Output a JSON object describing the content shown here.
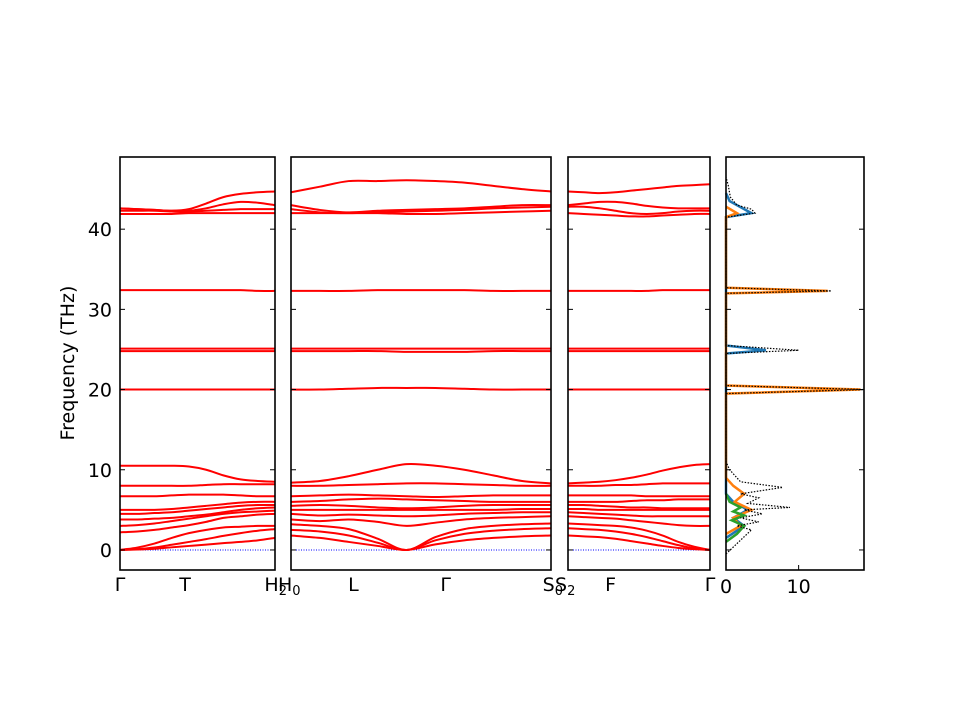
{
  "colors": {
    "band": "#ff0000",
    "zero_line": "#0000ff",
    "dos_total": "#000000",
    "dos_proj": [
      "#1f77b4",
      "#ff7f0e",
      "#2ca02c"
    ]
  },
  "chart_data": [
    {
      "type": "line",
      "panel": "band-segment-1",
      "ylabel": "Frequency (THz)",
      "ylim": [
        -2.5,
        49
      ],
      "yticks": [
        0,
        10,
        20,
        30,
        40
      ],
      "x_labels": [
        "Γ",
        "T",
        "H₂"
      ],
      "x_positions": [
        0,
        0.42,
        1
      ],
      "bands": [
        [
          0,
          0.05,
          0.15,
          0.33,
          0.5,
          0.67,
          0.85,
          1,
          1.2,
          1.5
        ],
        [
          0,
          0.1,
          0.3,
          0.65,
          1,
          1.35,
          1.75,
          2.1,
          2.4,
          2.6
        ],
        [
          0,
          0.3,
          0.8,
          1.5,
          2.1,
          2.5,
          2.8,
          2.9,
          3.0,
          3.0
        ],
        [
          2.2,
          2.3,
          2.5,
          2.8,
          3.1,
          3.5,
          4.0,
          4.2,
          4.4,
          4.5
        ],
        [
          3.0,
          3.1,
          3.3,
          3.6,
          3.9,
          4.2,
          4.5,
          4.7,
          4.8,
          4.9
        ],
        [
          3.8,
          3.8,
          3.9,
          4.0,
          4.2,
          4.4,
          4.7,
          5.0,
          5.2,
          5.3
        ],
        [
          4.5,
          4.5,
          4.6,
          4.7,
          4.9,
          5.1,
          5.3,
          5.5,
          5.6,
          5.6
        ],
        [
          5.0,
          5.0,
          5.0,
          5.1,
          5.3,
          5.5,
          5.7,
          5.9,
          6.0,
          6.0
        ],
        [
          6.7,
          6.7,
          6.7,
          6.8,
          6.9,
          6.9,
          6.9,
          6.8,
          6.7,
          6.7
        ],
        [
          8.0,
          8.0,
          8.0,
          8.0,
          8.0,
          8.1,
          8.2,
          8.2,
          8.2,
          8.2
        ],
        [
          10.5,
          10.5,
          10.5,
          10.5,
          10.4,
          10.0,
          9.3,
          8.8,
          8.6,
          8.5
        ],
        [
          20.0,
          20.0,
          20.0,
          20.0,
          20.0,
          20.0,
          20.0,
          20.0,
          20.0,
          20.0
        ],
        [
          24.8,
          24.8,
          24.8,
          24.8,
          24.8,
          24.8,
          24.8,
          24.8,
          24.8,
          24.8
        ],
        [
          25.1,
          25.1,
          25.1,
          25.1,
          25.1,
          25.1,
          25.1,
          25.1,
          25.1,
          25.1
        ],
        [
          32.4,
          32.4,
          32.4,
          32.4,
          32.4,
          32.4,
          32.4,
          32.4,
          32.3,
          32.3
        ],
        [
          41.9,
          41.9,
          41.9,
          41.9,
          42.0,
          42.0,
          42.0,
          42.0,
          42.0,
          42.0
        ],
        [
          42.3,
          42.3,
          42.3,
          42.2,
          42.2,
          42.3,
          42.4,
          42.5,
          42.5,
          42.5
        ],
        [
          42.6,
          42.5,
          42.4,
          42.3,
          42.3,
          42.6,
          43.1,
          43.4,
          43.3,
          43.0
        ],
        [
          42.6,
          42.5,
          42.4,
          42.3,
          42.5,
          43.2,
          44.0,
          44.4,
          44.6,
          44.7
        ]
      ]
    },
    {
      "type": "line",
      "panel": "band-segment-2",
      "x_labels": [
        "H₀",
        "L",
        "Γ",
        "S₀"
      ],
      "x_positions": [
        0,
        0.24,
        0.595,
        1
      ],
      "bands": [
        [
          1.8,
          1.5,
          1.0,
          0.5,
          0.0,
          0.7,
          1.2,
          1.5,
          1.7,
          1.8
        ],
        [
          2.5,
          2.3,
          1.8,
          0.9,
          0.0,
          1.2,
          2.0,
          2.4,
          2.6,
          2.7
        ],
        [
          3.2,
          3.0,
          2.6,
          1.4,
          0.0,
          1.6,
          2.6,
          3.0,
          3.2,
          3.3
        ],
        [
          3.8,
          3.6,
          3.8,
          3.5,
          3.0,
          3.4,
          3.8,
          4.0,
          4.1,
          4.2
        ],
        [
          4.5,
          4.3,
          4.4,
          4.3,
          4.2,
          4.3,
          4.5,
          4.6,
          4.7,
          4.7
        ],
        [
          5.0,
          5.0,
          5.0,
          5.0,
          5.0,
          5.0,
          5.0,
          5.0,
          5.1,
          5.1
        ],
        [
          5.5,
          5.6,
          5.5,
          5.3,
          5.2,
          5.3,
          5.5,
          5.6,
          5.6,
          5.6
        ],
        [
          6.0,
          6.1,
          6.3,
          6.4,
          6.3,
          6.2,
          6.1,
          6.0,
          6.0,
          6.0
        ],
        [
          6.7,
          6.8,
          6.9,
          6.8,
          6.7,
          6.6,
          6.7,
          6.8,
          6.8,
          6.8
        ],
        [
          8.0,
          8.0,
          8.1,
          8.2,
          8.3,
          8.3,
          8.2,
          8.1,
          8.0,
          8.0
        ],
        [
          8.4,
          8.6,
          9.2,
          10.0,
          10.7,
          10.5,
          10.0,
          9.3,
          8.6,
          8.3
        ],
        [
          20.0,
          20.0,
          20.1,
          20.2,
          20.2,
          20.2,
          20.1,
          20.0,
          20.0,
          20.0
        ],
        [
          24.8,
          24.8,
          24.8,
          24.8,
          24.7,
          24.7,
          24.7,
          24.8,
          24.8,
          24.8
        ],
        [
          25.1,
          25.1,
          25.1,
          25.1,
          25.1,
          25.1,
          25.1,
          25.1,
          25.1,
          25.1
        ],
        [
          32.3,
          32.3,
          32.3,
          32.4,
          32.4,
          32.4,
          32.4,
          32.3,
          32.3,
          32.3
        ],
        [
          42.0,
          42.0,
          42.0,
          42.0,
          41.9,
          41.9,
          42.0,
          42.1,
          42.2,
          42.3
        ],
        [
          42.5,
          42.1,
          42.0,
          42.1,
          42.2,
          42.3,
          42.4,
          42.6,
          42.7,
          42.8
        ],
        [
          43.0,
          42.4,
          42.1,
          42.3,
          42.4,
          42.5,
          42.6,
          42.8,
          43.0,
          43.0
        ],
        [
          44.6,
          45.3,
          46.0,
          46.0,
          46.1,
          46.0,
          45.8,
          45.4,
          45.0,
          44.7
        ]
      ]
    },
    {
      "type": "line",
      "panel": "band-segment-3",
      "x_labels": [
        "S₂",
        "F",
        "Γ"
      ],
      "x_positions": [
        0,
        0.3,
        1
      ],
      "bands": [
        [
          1.8,
          1.7,
          1.6,
          1.4,
          1.1,
          0.8,
          0.5,
          0.25,
          0.1,
          0.0
        ],
        [
          2.7,
          2.6,
          2.5,
          2.3,
          2.0,
          1.6,
          1.1,
          0.6,
          0.2,
          0.0
        ],
        [
          3.3,
          3.2,
          3.1,
          3.0,
          2.8,
          2.4,
          1.8,
          1.0,
          0.4,
          0.0
        ],
        [
          4.2,
          4.1,
          4.0,
          3.9,
          3.7,
          3.5,
          3.3,
          3.1,
          3.0,
          3.0
        ],
        [
          4.7,
          4.6,
          4.5,
          4.4,
          4.3,
          4.2,
          4.2,
          4.2,
          4.2,
          4.2
        ],
        [
          5.1,
          5.1,
          5.0,
          5.0,
          5.0,
          5.0,
          5.0,
          5.0,
          5.0,
          5.0
        ],
        [
          5.6,
          5.6,
          5.5,
          5.4,
          5.3,
          5.3,
          5.2,
          5.2,
          5.2,
          5.2
        ],
        [
          6.0,
          6.0,
          6.0,
          6.0,
          6.1,
          6.2,
          6.2,
          6.3,
          6.3,
          6.3
        ],
        [
          6.8,
          6.8,
          6.8,
          6.8,
          6.8,
          6.7,
          6.7,
          6.7,
          6.7,
          6.7
        ],
        [
          8.0,
          8.0,
          8.0,
          8.1,
          8.1,
          8.2,
          8.3,
          8.3,
          8.3,
          8.3
        ],
        [
          8.3,
          8.4,
          8.5,
          8.7,
          9.0,
          9.4,
          9.9,
          10.3,
          10.6,
          10.7
        ],
        [
          20.0,
          20.0,
          20.0,
          20.0,
          20.0,
          20.0,
          20.0,
          20.0,
          20.0,
          20.0
        ],
        [
          24.8,
          24.8,
          24.8,
          24.8,
          24.8,
          24.8,
          24.8,
          24.8,
          24.8,
          24.8
        ],
        [
          25.1,
          25.1,
          25.1,
          25.1,
          25.1,
          25.1,
          25.1,
          25.1,
          25.1,
          25.1
        ],
        [
          32.3,
          32.3,
          32.3,
          32.3,
          32.3,
          32.3,
          32.4,
          32.4,
          32.4,
          32.4
        ],
        [
          42.0,
          41.9,
          41.8,
          41.7,
          41.6,
          41.6,
          41.7,
          41.8,
          41.9,
          41.9
        ],
        [
          42.8,
          42.8,
          42.6,
          42.3,
          42.0,
          41.9,
          42.0,
          42.2,
          42.3,
          42.3
        ],
        [
          43.0,
          43.2,
          43.4,
          43.4,
          43.2,
          42.9,
          42.7,
          42.6,
          42.6,
          42.6
        ],
        [
          44.7,
          44.6,
          44.5,
          44.6,
          44.8,
          45.0,
          45.2,
          45.4,
          45.5,
          45.6
        ]
      ]
    },
    {
      "type": "area",
      "panel": "dos",
      "xlim": [
        0,
        19
      ],
      "xticks": [
        0,
        10
      ],
      "total": [
        [
          0,
          -0.5
        ],
        [
          3.5,
          2.5
        ],
        [
          1.5,
          3.0
        ],
        [
          4.5,
          3.5
        ],
        [
          2.0,
          4.0
        ],
        [
          5.0,
          4.5
        ],
        [
          2.5,
          5.0
        ],
        [
          8.8,
          5.3
        ],
        [
          3.0,
          5.8
        ],
        [
          4.5,
          6.5
        ],
        [
          2.0,
          7.0
        ],
        [
          7.8,
          7.8
        ],
        [
          2.0,
          8.5
        ],
        [
          1.0,
          9.5
        ],
        [
          0.5,
          10.0
        ],
        [
          0,
          11.0
        ],
        [
          0,
          19.5
        ],
        [
          19.0,
          20.0
        ],
        [
          0,
          20.5
        ],
        [
          0,
          24.5
        ],
        [
          10.0,
          24.9
        ],
        [
          0,
          25.5
        ],
        [
          0,
          32.0
        ],
        [
          14.5,
          32.3
        ],
        [
          0,
          32.7
        ],
        [
          0,
          41.5
        ],
        [
          4.0,
          42.0
        ],
        [
          3.5,
          42.5
        ],
        [
          1.5,
          43.0
        ],
        [
          0.6,
          44.0
        ],
        [
          0.3,
          45.5
        ],
        [
          0,
          46.5
        ]
      ],
      "projected": [
        {
          "color_index": 0,
          "points": [
            [
              0,
              1.5
            ],
            [
              2.5,
              3.0
            ],
            [
              1.0,
              4.0
            ],
            [
              3.0,
              5.0
            ],
            [
              1.0,
              6.0
            ],
            [
              0,
              7.0
            ],
            [
              0,
              24.5
            ],
            [
              5.5,
              24.9
            ],
            [
              0,
              25.5
            ],
            [
              0,
              41.5
            ],
            [
              3.5,
              42.0
            ],
            [
              2.5,
              42.5
            ],
            [
              0.5,
              43.5
            ],
            [
              0,
              44.5
            ]
          ]
        },
        {
          "color_index": 1,
          "points": [
            [
              0,
              2.0
            ],
            [
              2.0,
              3.0
            ],
            [
              1.0,
              4.0
            ],
            [
              3.5,
              5.0
            ],
            [
              1.2,
              6.0
            ],
            [
              2.5,
              7.0
            ],
            [
              1.0,
              8.0
            ],
            [
              0,
              9.0
            ],
            [
              0,
              19.5
            ],
            [
              18.5,
              20.0
            ],
            [
              0,
              20.5
            ],
            [
              0,
              32.0
            ],
            [
              14.0,
              32.3
            ],
            [
              0,
              32.7
            ],
            [
              0,
              41.5
            ],
            [
              1.5,
              42.0
            ],
            [
              0,
              42.8
            ]
          ]
        },
        {
          "color_index": 2,
          "points": [
            [
              0,
              1.0
            ],
            [
              1.5,
              2.0
            ],
            [
              2.5,
              3.0
            ],
            [
              0.8,
              3.7
            ],
            [
              2.5,
              4.3
            ],
            [
              1.0,
              4.8
            ],
            [
              2.0,
              5.3
            ],
            [
              0.5,
              6.0
            ],
            [
              0,
              7.0
            ]
          ]
        }
      ]
    }
  ]
}
